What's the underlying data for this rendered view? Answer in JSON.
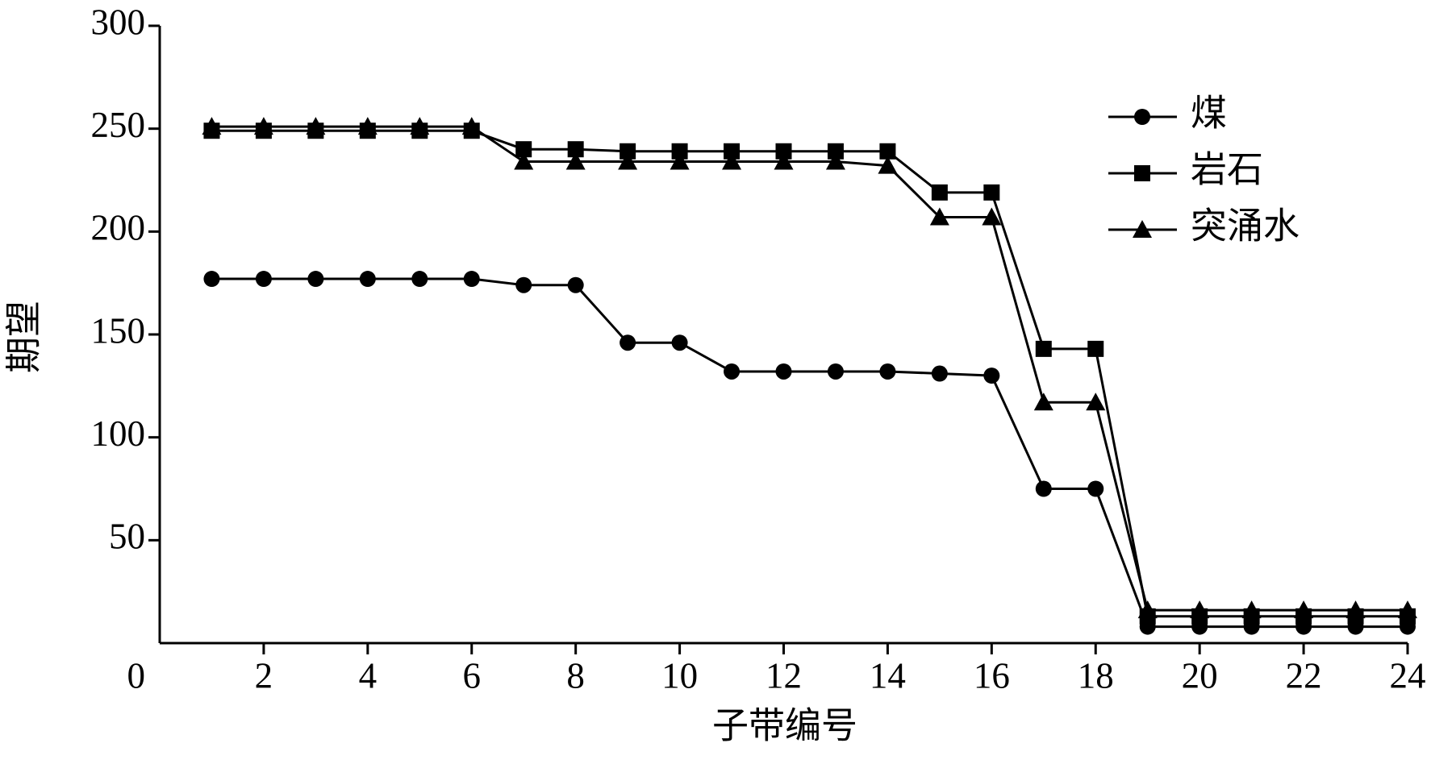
{
  "chart_data": {
    "type": "line",
    "x_label": "子带编号",
    "y_label": "期望",
    "x": [
      1,
      2,
      3,
      4,
      5,
      6,
      7,
      8,
      9,
      10,
      11,
      12,
      13,
      14,
      15,
      16,
      17,
      18,
      19,
      20,
      21,
      22,
      23,
      24
    ],
    "series": [
      {
        "name": "煤",
        "color": "#000000",
        "marker": "circle",
        "values": [
          177,
          177,
          177,
          177,
          177,
          177,
          174,
          174,
          146,
          146,
          132,
          132,
          132,
          132,
          131,
          130,
          75,
          75,
          8,
          8,
          8,
          8,
          8,
          8
        ]
      },
      {
        "name": "岩石",
        "color": "#000000",
        "marker": "square",
        "values": [
          249,
          249,
          249,
          249,
          249,
          249,
          240,
          240,
          239,
          239,
          239,
          239,
          239,
          239,
          219,
          219,
          143,
          143,
          13,
          13,
          13,
          13,
          13,
          13
        ]
      },
      {
        "name": "突涌水",
        "color": "#000000",
        "marker": "triangle",
        "values": [
          251,
          251,
          251,
          251,
          251,
          251,
          234,
          234,
          234,
          234,
          234,
          234,
          234,
          232,
          207,
          207,
          117,
          117,
          16,
          16,
          16,
          16,
          16,
          16
        ]
      }
    ],
    "xlim": [
      0,
      24
    ],
    "xticks": [
      0,
      2,
      4,
      6,
      8,
      10,
      12,
      14,
      16,
      18,
      20,
      22,
      24
    ],
    "ylim": [
      0,
      300
    ],
    "yticks": [
      50,
      100,
      150,
      200,
      250,
      300
    ],
    "legend": "upper right",
    "grid": false
  }
}
